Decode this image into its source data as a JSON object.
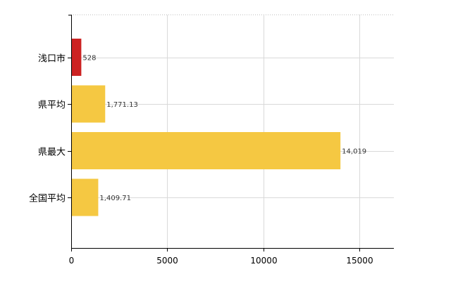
{
  "chart_data": {
    "type": "bar",
    "orientation": "horizontal",
    "categories": [
      "浅口市",
      "県平均",
      "県最大",
      "全国平均"
    ],
    "values": [
      528,
      1771.13,
      14019,
      1409.71
    ],
    "value_labels": [
      "528",
      "1,771.13",
      "14,019",
      "1,409.71"
    ],
    "bar_colors": [
      "#cc2222",
      "#f5c842",
      "#f5c842",
      "#f5c842"
    ],
    "xlim": [
      0,
      16800
    ],
    "xticks": [
      0,
      5000,
      10000,
      15000
    ],
    "xtick_labels": [
      "0",
      "5000",
      "10000",
      "15000"
    ],
    "grid": true,
    "title": "",
    "xlabel": "",
    "ylabel": ""
  }
}
